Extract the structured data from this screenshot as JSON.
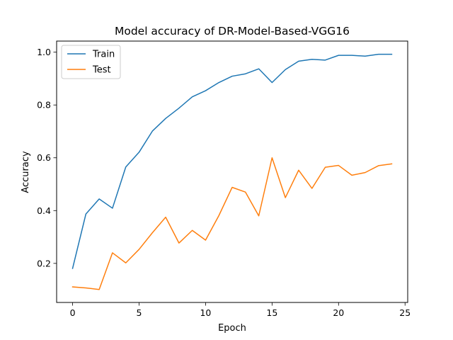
{
  "chart_data": {
    "type": "line",
    "title": "Model accuracy of DR-Model-Based-VGG16",
    "xlabel": "Epoch",
    "ylabel": "Accuracy",
    "xlim": [
      -1.2,
      25.2
    ],
    "ylim": [
      0.052,
      1.042
    ],
    "xticks": [
      0,
      5,
      10,
      15,
      20,
      25
    ],
    "yticks": [
      0.2,
      0.4,
      0.6,
      0.8,
      1.0
    ],
    "grid": false,
    "legend": "upper left",
    "x": [
      0,
      1,
      2,
      3,
      4,
      5,
      6,
      7,
      8,
      9,
      10,
      11,
      12,
      13,
      14,
      15,
      16,
      17,
      18,
      19,
      20,
      21,
      22,
      23,
      24
    ],
    "series": [
      {
        "name": "Train",
        "color": "#1f77b4",
        "values": [
          0.181,
          0.387,
          0.444,
          0.409,
          0.565,
          0.621,
          0.701,
          0.749,
          0.788,
          0.831,
          0.854,
          0.885,
          0.909,
          0.918,
          0.937,
          0.885,
          0.934,
          0.966,
          0.973,
          0.97,
          0.988,
          0.988,
          0.985,
          0.992,
          0.992
        ]
      },
      {
        "name": "Test",
        "color": "#ff7f0e",
        "values": [
          0.111,
          0.107,
          0.101,
          0.24,
          0.202,
          0.253,
          0.316,
          0.375,
          0.277,
          0.325,
          0.288,
          0.381,
          0.488,
          0.47,
          0.38,
          0.6,
          0.449,
          0.553,
          0.484,
          0.564,
          0.571,
          0.534,
          0.544,
          0.57,
          0.577
        ]
      }
    ]
  }
}
